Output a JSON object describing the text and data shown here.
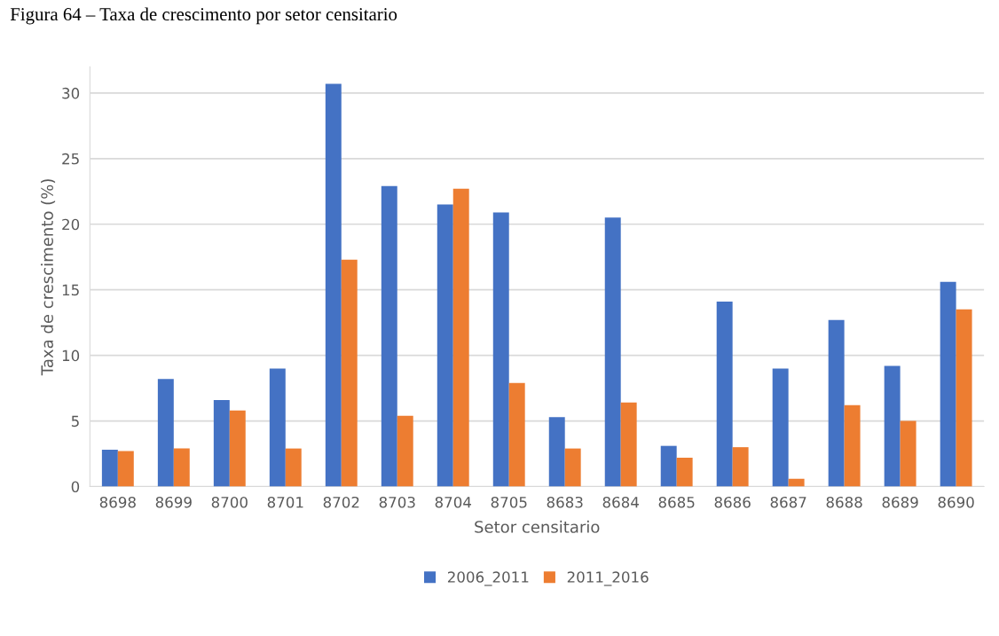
{
  "chart_data": {
    "type": "bar",
    "title": "Figura 64 – Taxa de crescimento por setor censitario",
    "xlabel": "Setor censitario",
    "ylabel": "Taxa de crescimento (%)",
    "categories": [
      "8698",
      "8699",
      "8700",
      "8701",
      "8702",
      "8703",
      "8704",
      "8705",
      "8683",
      "8684",
      "8685",
      "8686",
      "8687",
      "8688",
      "8689",
      "8690"
    ],
    "series": [
      {
        "name": "2006_2011",
        "color": "#4472c4",
        "values": [
          2.8,
          8.2,
          6.6,
          9.0,
          30.7,
          22.9,
          21.5,
          20.9,
          5.3,
          20.5,
          3.1,
          14.1,
          9.0,
          12.7,
          9.2,
          15.6
        ]
      },
      {
        "name": "2011_2016",
        "color": "#ed7d31",
        "values": [
          2.7,
          2.9,
          5.8,
          2.9,
          17.3,
          5.4,
          22.7,
          7.9,
          2.9,
          6.4,
          2.2,
          3.0,
          0.6,
          6.2,
          5.0,
          13.5
        ]
      }
    ],
    "ylim": [
      0,
      32
    ],
    "yticks": [
      0,
      5,
      10,
      15,
      20,
      25,
      30
    ],
    "grid": "y",
    "legend": "bottom"
  }
}
